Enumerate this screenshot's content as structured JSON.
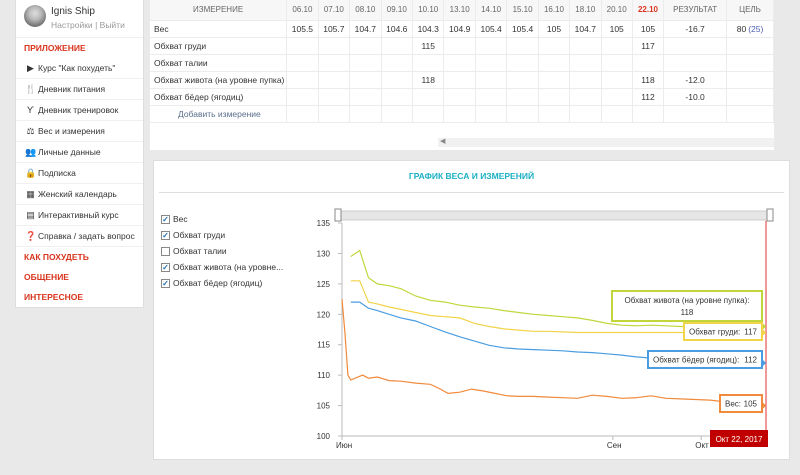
{
  "user": {
    "name": "Ignis Ship",
    "settings": "Настройки",
    "sep": "|",
    "logout": "Выйти"
  },
  "sidebar": {
    "section_app": "ПРИЛОЖЕНИЕ",
    "items": [
      {
        "icon": "play-icon",
        "glyph": "▶",
        "label": "Курс \"Как похудеть\""
      },
      {
        "icon": "cutlery-icon",
        "glyph": "🍴",
        "label": "Дневник питания"
      },
      {
        "icon": "dumbbell-icon",
        "glyph": "Ƴ",
        "label": "Дневник тренировок"
      },
      {
        "icon": "scale-icon",
        "glyph": "⚖",
        "label": "Вес и измерения"
      },
      {
        "icon": "users-icon",
        "glyph": "👥",
        "label": "Личные данные"
      },
      {
        "icon": "lock-icon",
        "glyph": "🔒",
        "label": "Подписка"
      },
      {
        "icon": "calendar-icon",
        "glyph": "▦",
        "label": "Женский календарь"
      },
      {
        "icon": "course-icon",
        "glyph": "▤",
        "label": "Интерактивный курс"
      },
      {
        "icon": "question-icon",
        "glyph": "❓",
        "label": "Справка / задать вопрос"
      }
    ],
    "sections": [
      "КАК ПОХУДЕТЬ",
      "ОБЩЕНИЕ",
      "ИНТЕРЕСНОЕ"
    ]
  },
  "table": {
    "header_name": "ИЗМЕРЕНИЕ",
    "dates": [
      "06.10",
      "07.10",
      "08.10",
      "09.10",
      "10.10",
      "13.10",
      "14.10",
      "15.10",
      "16.10",
      "18.10",
      "20.10",
      "22.10"
    ],
    "result_label": "РЕЗУЛЬТАТ",
    "goal_label": "ЦЕЛЬ",
    "rows": [
      {
        "name": "Вес",
        "values": [
          "105.5",
          "105.7",
          "104.7",
          "104.6",
          "104.3",
          "104.9",
          "105.4",
          "105.4",
          "105",
          "104.7",
          "105",
          "105"
        ],
        "result": "-16.7",
        "goal": "80",
        "goal_extra": "(25)"
      },
      {
        "name": "Обхват груди",
        "values": [
          "",
          "",
          "",
          "",
          "115",
          "",
          "",
          "",
          "",
          "",
          "",
          "117"
        ],
        "result": "",
        "goal": "",
        "goal_extra": ""
      },
      {
        "name": "Обхват талии",
        "values": [
          "",
          "",
          "",
          "",
          "",
          "",
          "",
          "",
          "",
          "",
          "",
          ""
        ],
        "result": "",
        "goal": "",
        "goal_extra": ""
      },
      {
        "name": "Обхват живота (на уровне пупка)",
        "values": [
          "",
          "",
          "",
          "",
          "118",
          "",
          "",
          "",
          "",
          "",
          "",
          "118"
        ],
        "result": "-12.0",
        "goal": "",
        "goal_extra": ""
      },
      {
        "name": "Обхват бёдер (ягодиц)",
        "values": [
          "",
          "",
          "",
          "",
          "",
          "",
          "",
          "",
          "",
          "",
          "",
          "112"
        ],
        "result": "-10.0",
        "goal": "",
        "goal_extra": ""
      }
    ],
    "add_label": "Добавить измерение"
  },
  "chart_panel": {
    "title": "ГРАФИК ВЕСА И ИЗМЕРЕНИЙ",
    "legend": [
      {
        "label": "Вес",
        "checked": true,
        "check_glyph": "✓"
      },
      {
        "label": "Обхват груди",
        "checked": true,
        "check_glyph": "✓"
      },
      {
        "label": "Обхват талии",
        "checked": false,
        "check_glyph": ""
      },
      {
        "label": "Обхват живота (на уровне...",
        "checked": true,
        "check_glyph": "✓"
      },
      {
        "label": "Обхват бёдер (ягодиц)",
        "checked": true,
        "check_glyph": "✓"
      }
    ],
    "range_label": "Окт 22, 2017",
    "handle_glyph": "‖"
  },
  "chart_data": {
    "type": "line",
    "ylim": [
      100,
      135
    ],
    "yticks": [
      100,
      105,
      110,
      115,
      120,
      125,
      130,
      135
    ],
    "xticks": [
      {
        "label": "Июн",
        "day": 0
      },
      {
        "label": "Сен",
        "day": 92
      },
      {
        "label": "Окт",
        "day": 122
      }
    ],
    "xlim_days": [
      0,
      144
    ],
    "series": [
      {
        "name": "Обхват живота (на уровне пупка)",
        "color": "#c2d63c",
        "tooltip": "Обхват живота (на уровне пупка):",
        "tooltip_value": "118",
        "points": [
          [
            3,
            129.5
          ],
          [
            6,
            130.5
          ],
          [
            9,
            126
          ],
          [
            12,
            125
          ],
          [
            16,
            124.7
          ],
          [
            20,
            124.2
          ],
          [
            25,
            123
          ],
          [
            30,
            122.3
          ],
          [
            35,
            122
          ],
          [
            40,
            121.5
          ],
          [
            45,
            121.2
          ],
          [
            50,
            121
          ],
          [
            55,
            120.6
          ],
          [
            60,
            120.3
          ],
          [
            65,
            120
          ],
          [
            70,
            119.8
          ],
          [
            75,
            119.6
          ],
          [
            80,
            119.4
          ],
          [
            85,
            119
          ],
          [
            90,
            118.5
          ],
          [
            95,
            118.2
          ],
          [
            100,
            118.1
          ],
          [
            105,
            118.2
          ],
          [
            110,
            118.1
          ],
          [
            115,
            118
          ],
          [
            120,
            118
          ],
          [
            125,
            118.2
          ],
          [
            130,
            118.3
          ],
          [
            135,
            118
          ],
          [
            140,
            117.9
          ],
          [
            144,
            118
          ]
        ]
      },
      {
        "name": "Обхват груди",
        "color": "#f2d44a",
        "tooltip": "Обхват груди:",
        "tooltip_value": "117",
        "points": [
          [
            3,
            125.5
          ],
          [
            6,
            125.5
          ],
          [
            9,
            122
          ],
          [
            12,
            121.7
          ],
          [
            16,
            121.2
          ],
          [
            20,
            120.8
          ],
          [
            25,
            120.3
          ],
          [
            30,
            119.8
          ],
          [
            35,
            119.6
          ],
          [
            40,
            119.4
          ],
          [
            45,
            118.5
          ],
          [
            50,
            118
          ],
          [
            55,
            117.6
          ],
          [
            60,
            117.4
          ],
          [
            65,
            117.2
          ],
          [
            70,
            117.2
          ],
          [
            75,
            117.1
          ],
          [
            80,
            117
          ],
          [
            90,
            117
          ],
          [
            100,
            117
          ],
          [
            110,
            117
          ],
          [
            120,
            117
          ],
          [
            130,
            117
          ],
          [
            140,
            117
          ],
          [
            144,
            117
          ]
        ]
      },
      {
        "name": "Вес",
        "color": "#f08a3c",
        "tooltip": "Вес:",
        "tooltip_value": "105",
        "points": [
          [
            0,
            122.5
          ],
          [
            1,
            117
          ],
          [
            2,
            110
          ],
          [
            3,
            109.2
          ],
          [
            5,
            109.6
          ],
          [
            7,
            110
          ],
          [
            9,
            109.5
          ],
          [
            12,
            109.7
          ],
          [
            16,
            109.1
          ],
          [
            20,
            109
          ],
          [
            25,
            108.7
          ],
          [
            30,
            108.5
          ],
          [
            33,
            107.8
          ],
          [
            36,
            107
          ],
          [
            40,
            107.2
          ],
          [
            44,
            107.7
          ],
          [
            48,
            107.4
          ],
          [
            52,
            107
          ],
          [
            56,
            106.6
          ],
          [
            60,
            106.5
          ],
          [
            65,
            106.5
          ],
          [
            70,
            106.4
          ],
          [
            75,
            106.3
          ],
          [
            80,
            106.2
          ],
          [
            85,
            106.7
          ],
          [
            90,
            106.5
          ],
          [
            95,
            106.2
          ],
          [
            100,
            106.3
          ],
          [
            105,
            106.6
          ],
          [
            110,
            106.2
          ],
          [
            115,
            106.1
          ],
          [
            120,
            106
          ],
          [
            125,
            105.9
          ],
          [
            130,
            105.6
          ],
          [
            135,
            105.3
          ],
          [
            140,
            104.9
          ],
          [
            144,
            105
          ]
        ]
      },
      {
        "name": "Обхват бёдер (ягодиц)",
        "color": "#4a9de0",
        "tooltip": "Обхват бёдер (ягодиц):",
        "tooltip_value": "112",
        "points": [
          [
            3,
            122
          ],
          [
            6,
            122
          ],
          [
            9,
            121
          ],
          [
            12,
            120.6
          ],
          [
            16,
            120
          ],
          [
            20,
            119.4
          ],
          [
            25,
            118.9
          ],
          [
            30,
            118
          ],
          [
            35,
            117.1
          ],
          [
            40,
            116.3
          ],
          [
            45,
            115.6
          ],
          [
            50,
            114.9
          ],
          [
            55,
            114.5
          ],
          [
            60,
            114.3
          ],
          [
            65,
            114.2
          ],
          [
            70,
            114.1
          ],
          [
            75,
            114
          ],
          [
            80,
            113.8
          ],
          [
            85,
            113.7
          ],
          [
            90,
            113.5
          ],
          [
            95,
            113.3
          ],
          [
            100,
            113
          ],
          [
            105,
            112.8
          ],
          [
            110,
            112.5
          ],
          [
            115,
            112.4
          ],
          [
            120,
            112.3
          ],
          [
            125,
            112.2
          ],
          [
            130,
            112.1
          ],
          [
            135,
            112.1
          ],
          [
            140,
            112
          ],
          [
            144,
            112
          ]
        ]
      }
    ]
  }
}
